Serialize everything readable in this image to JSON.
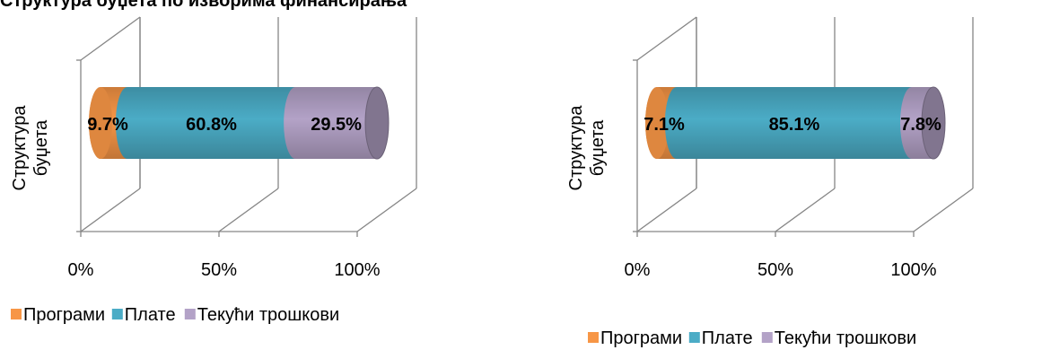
{
  "page": {
    "heading": "Структура буџета по изворима финансирања"
  },
  "colors": {
    "programi": "#F79646",
    "plate": "#4BACC6",
    "tekuci": "#B3A2C7"
  },
  "chart_data": [
    {
      "type": "bar",
      "orientation": "horizontal",
      "stacked": true,
      "percent": true,
      "categories": [
        "Структура буџета"
      ],
      "category_label_lines": [
        "Структура",
        "буџета"
      ],
      "series": [
        {
          "name": "Програми",
          "values": [
            9.7
          ],
          "label": "9.7%"
        },
        {
          "name": "Плате",
          "values": [
            60.8
          ],
          "label": "60.8%"
        },
        {
          "name": "Текући трошкови",
          "values": [
            29.5
          ],
          "label": "29.5%"
        }
      ],
      "x_ticks": [
        "0%",
        "50%",
        "100%"
      ],
      "xlim": [
        0,
        100
      ],
      "legend": {
        "position": "bottom",
        "items": [
          "Програми",
          "Плате",
          "Текући трошкови"
        ]
      }
    },
    {
      "type": "bar",
      "orientation": "horizontal",
      "stacked": true,
      "percent": true,
      "categories": [
        "Структура буџета"
      ],
      "category_label_lines": [
        "Структура",
        "буџета"
      ],
      "series": [
        {
          "name": "Програми",
          "values": [
            7.1
          ],
          "label": "7.1%"
        },
        {
          "name": "Плате",
          "values": [
            85.1
          ],
          "label": "85.1%"
        },
        {
          "name": "Текући трошкови",
          "values": [
            7.8
          ],
          "label": "7.8%"
        }
      ],
      "x_ticks": [
        "0%",
        "50%",
        "100%"
      ],
      "xlim": [
        0,
        100
      ],
      "legend": {
        "position": "bottom",
        "items": [
          "Програми",
          "Плате",
          "Текући трошкови"
        ]
      }
    }
  ]
}
